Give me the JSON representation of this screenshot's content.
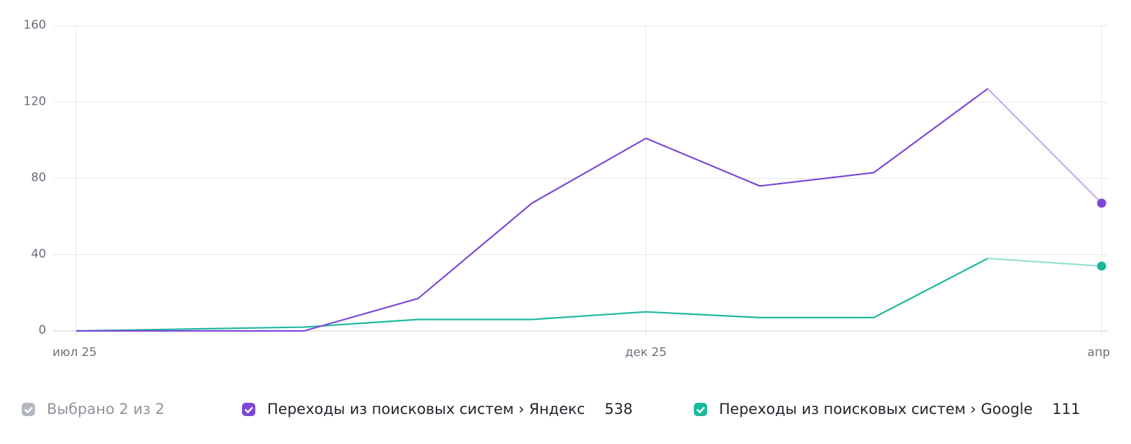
{
  "chart_data": {
    "type": "line",
    "categories": [
      "июл 25",
      null,
      null,
      null,
      null,
      "дек 25",
      null,
      null,
      null,
      "апр"
    ],
    "series": [
      {
        "name": "Переходы из поисковых систем › Яндекс",
        "color": "#7b48d6",
        "values": [
          0,
          0,
          0,
          17,
          67,
          101,
          76,
          83,
          127,
          67
        ],
        "total": 538
      },
      {
        "name": "Переходы из поисковых систем › Google",
        "color": "#1cb89c",
        "values": [
          0,
          1,
          2,
          6,
          6,
          10,
          7,
          7,
          38,
          34
        ],
        "total": 111
      }
    ],
    "ylim": [
      0,
      160
    ],
    "yticks": [
      0,
      40,
      80,
      120,
      160
    ],
    "grid": true,
    "legend_summary": "Выбрано 2 из 2"
  }
}
